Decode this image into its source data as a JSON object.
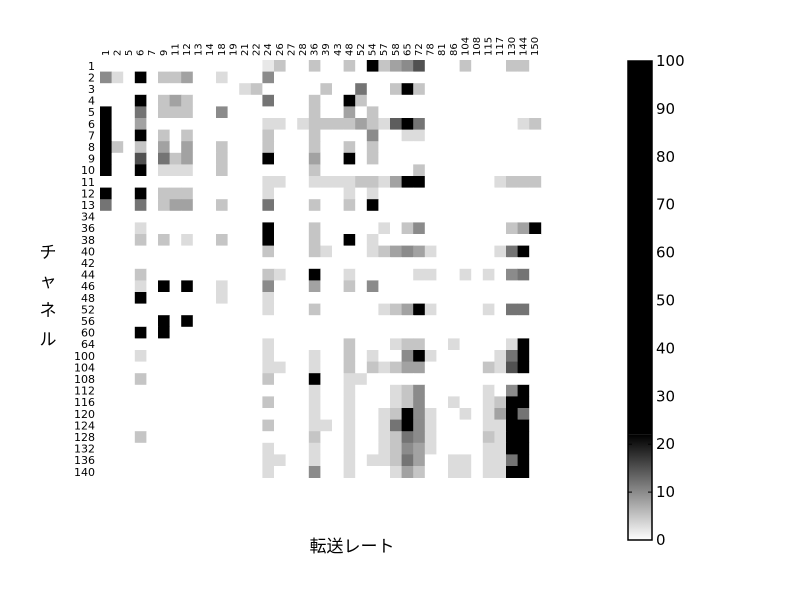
{
  "chart_data": {
    "type": "heatmap",
    "title": "",
    "xlabel": "転送レート",
    "ylabel": "チャネル",
    "x_categories": [
      "1",
      "2",
      "5",
      "6",
      "7",
      "9",
      "11",
      "12",
      "13",
      "14",
      "18",
      "19",
      "21",
      "22",
      "24",
      "26",
      "27",
      "28",
      "36",
      "39",
      "43",
      "48",
      "52",
      "54",
      "57",
      "58",
      "65",
      "72",
      "78",
      "81",
      "86",
      "104",
      "108",
      "115",
      "117",
      "130",
      "144",
      "150"
    ],
    "y_categories": [
      "1",
      "2",
      "3",
      "4",
      "5",
      "6",
      "7",
      "8",
      "9",
      "10",
      "11",
      "12",
      "13",
      "34",
      "36",
      "38",
      "40",
      "42",
      "44",
      "46",
      "48",
      "52",
      "56",
      "60",
      "64",
      "100",
      "104",
      "108",
      "112",
      "116",
      "120",
      "124",
      "128",
      "132",
      "136",
      "140"
    ],
    "value_range": [
      0,
      100
    ],
    "colorbar": {
      "ticks": [
        0,
        10,
        20,
        30,
        40,
        50,
        60,
        70,
        80,
        90,
        100
      ],
      "gradient_max": 22,
      "colors": [
        "#ffffff",
        "#000000"
      ]
    },
    "cells": [
      [
        0,
        0,
        0,
        0,
        0,
        0,
        0,
        0,
        0,
        0,
        0,
        0,
        0,
        0,
        2,
        5,
        0,
        0,
        5,
        0,
        0,
        5,
        0,
        100,
        5,
        8,
        10,
        15,
        0,
        0,
        0,
        5,
        0,
        0,
        0,
        5,
        5,
        0
      ],
      [
        10,
        3,
        0,
        100,
        0,
        5,
        5,
        8,
        0,
        0,
        3,
        0,
        0,
        0,
        10,
        0,
        0,
        0,
        0,
        0,
        0,
        0,
        0,
        0,
        0,
        0,
        0,
        0,
        0,
        0,
        0,
        0,
        0,
        0,
        0,
        0,
        0,
        0
      ],
      [
        0,
        0,
        0,
        0,
        0,
        0,
        0,
        0,
        0,
        0,
        0,
        0,
        3,
        5,
        0,
        0,
        0,
        0,
        0,
        5,
        0,
        0,
        12,
        0,
        0,
        5,
        100,
        5,
        0,
        0,
        0,
        0,
        0,
        0,
        0,
        0,
        0,
        0
      ],
      [
        0,
        0,
        0,
        45,
        0,
        5,
        8,
        5,
        0,
        0,
        0,
        0,
        0,
        0,
        12,
        0,
        0,
        0,
        5,
        0,
        0,
        100,
        5,
        0,
        0,
        0,
        0,
        0,
        0,
        0,
        0,
        0,
        0,
        0,
        0,
        0,
        0,
        0
      ],
      [
        100,
        0,
        0,
        12,
        0,
        5,
        5,
        5,
        0,
        0,
        10,
        0,
        0,
        0,
        0,
        0,
        0,
        0,
        5,
        0,
        0,
        8,
        0,
        5,
        0,
        0,
        0,
        0,
        0,
        0,
        0,
        0,
        0,
        0,
        0,
        0,
        0,
        0
      ],
      [
        100,
        0,
        0,
        8,
        0,
        0,
        0,
        0,
        0,
        0,
        0,
        0,
        0,
        0,
        3,
        3,
        0,
        3,
        5,
        5,
        5,
        5,
        8,
        5,
        3,
        14,
        100,
        12,
        0,
        0,
        0,
        0,
        0,
        0,
        0,
        0,
        3,
        5
      ],
      [
        100,
        0,
        0,
        100,
        0,
        5,
        0,
        5,
        0,
        0,
        0,
        0,
        0,
        0,
        5,
        0,
        0,
        0,
        5,
        0,
        0,
        0,
        0,
        10,
        0,
        0,
        3,
        3,
        0,
        0,
        0,
        0,
        0,
        0,
        0,
        0,
        0,
        0
      ],
      [
        100,
        5,
        0,
        5,
        0,
        8,
        0,
        8,
        0,
        0,
        5,
        0,
        0,
        0,
        5,
        0,
        0,
        0,
        5,
        0,
        0,
        5,
        0,
        5,
        0,
        0,
        0,
        0,
        0,
        0,
        0,
        0,
        0,
        0,
        0,
        0,
        0,
        0
      ],
      [
        100,
        0,
        0,
        15,
        0,
        12,
        5,
        8,
        0,
        0,
        5,
        0,
        0,
        0,
        100,
        0,
        0,
        0,
        8,
        0,
        0,
        60,
        0,
        5,
        0,
        0,
        0,
        0,
        0,
        0,
        0,
        0,
        0,
        0,
        0,
        0,
        0,
        0
      ],
      [
        100,
        0,
        0,
        100,
        0,
        3,
        3,
        3,
        0,
        0,
        5,
        0,
        0,
        0,
        0,
        0,
        0,
        0,
        5,
        0,
        0,
        0,
        0,
        0,
        0,
        0,
        0,
        5,
        0,
        0,
        0,
        0,
        0,
        0,
        0,
        0,
        0,
        0
      ],
      [
        0,
        0,
        0,
        0,
        0,
        0,
        0,
        0,
        0,
        0,
        0,
        0,
        0,
        0,
        3,
        3,
        0,
        0,
        3,
        3,
        3,
        3,
        5,
        5,
        3,
        8,
        100,
        100,
        0,
        0,
        0,
        0,
        0,
        0,
        3,
        5,
        5,
        5
      ],
      [
        100,
        0,
        0,
        100,
        0,
        5,
        5,
        5,
        0,
        0,
        0,
        0,
        0,
        0,
        3,
        0,
        0,
        0,
        0,
        0,
        0,
        3,
        0,
        3,
        0,
        0,
        0,
        0,
        0,
        0,
        0,
        0,
        0,
        0,
        0,
        0,
        0,
        0
      ],
      [
        12,
        0,
        0,
        12,
        0,
        5,
        8,
        8,
        0,
        0,
        5,
        0,
        0,
        0,
        12,
        0,
        0,
        0,
        5,
        0,
        0,
        5,
        0,
        100,
        0,
        0,
        0,
        0,
        0,
        0,
        0,
        0,
        0,
        0,
        0,
        0,
        0,
        0
      ],
      [
        0,
        0,
        0,
        0,
        0,
        0,
        0,
        0,
        0,
        0,
        0,
        0,
        0,
        0,
        0,
        0,
        0,
        0,
        0,
        0,
        0,
        0,
        0,
        0,
        0,
        0,
        0,
        0,
        0,
        0,
        0,
        0,
        0,
        0,
        0,
        0,
        0,
        0
      ],
      [
        0,
        0,
        0,
        3,
        0,
        0,
        0,
        0,
        0,
        0,
        0,
        0,
        0,
        0,
        100,
        0,
        0,
        0,
        5,
        0,
        0,
        0,
        0,
        0,
        3,
        0,
        5,
        10,
        0,
        0,
        0,
        0,
        0,
        0,
        0,
        5,
        8,
        100
      ],
      [
        0,
        0,
        0,
        5,
        0,
        5,
        0,
        3,
        0,
        0,
        5,
        0,
        0,
        0,
        100,
        0,
        0,
        0,
        5,
        0,
        0,
        70,
        0,
        3,
        0,
        0,
        0,
        0,
        0,
        0,
        0,
        0,
        0,
        0,
        0,
        0,
        0,
        0
      ],
      [
        0,
        0,
        0,
        0,
        0,
        0,
        0,
        0,
        0,
        0,
        0,
        0,
        0,
        0,
        5,
        0,
        0,
        0,
        5,
        3,
        0,
        0,
        0,
        3,
        5,
        8,
        10,
        8,
        3,
        0,
        0,
        0,
        0,
        0,
        3,
        12,
        100,
        0
      ],
      [
        0,
        0,
        0,
        0,
        0,
        0,
        0,
        0,
        0,
        0,
        0,
        0,
        0,
        0,
        0,
        0,
        0,
        0,
        0,
        0,
        0,
        0,
        0,
        0,
        0,
        0,
        0,
        0,
        0,
        0,
        0,
        0,
        0,
        0,
        0,
        0,
        0,
        0
      ],
      [
        0,
        0,
        0,
        5,
        0,
        0,
        0,
        0,
        0,
        0,
        0,
        0,
        0,
        0,
        5,
        3,
        0,
        0,
        100,
        0,
        0,
        3,
        0,
        0,
        0,
        0,
        0,
        3,
        3,
        0,
        0,
        3,
        0,
        3,
        0,
        10,
        12,
        0
      ],
      [
        0,
        0,
        0,
        3,
        0,
        100,
        0,
        100,
        0,
        0,
        3,
        0,
        0,
        0,
        10,
        0,
        0,
        0,
        8,
        0,
        0,
        5,
        0,
        10,
        0,
        0,
        0,
        0,
        0,
        0,
        0,
        0,
        0,
        0,
        0,
        0,
        0,
        0
      ],
      [
        0,
        0,
        0,
        100,
        0,
        0,
        0,
        0,
        0,
        0,
        3,
        0,
        0,
        0,
        3,
        0,
        0,
        0,
        0,
        0,
        0,
        0,
        0,
        0,
        0,
        0,
        0,
        0,
        0,
        0,
        0,
        0,
        0,
        0,
        0,
        0,
        0,
        0
      ],
      [
        0,
        0,
        0,
        0,
        0,
        0,
        0,
        0,
        0,
        0,
        0,
        0,
        0,
        0,
        3,
        0,
        0,
        0,
        5,
        0,
        0,
        0,
        0,
        0,
        3,
        5,
        8,
        100,
        3,
        0,
        0,
        0,
        0,
        3,
        0,
        12,
        12,
        0
      ],
      [
        0,
        0,
        0,
        0,
        0,
        100,
        0,
        100,
        0,
        0,
        0,
        0,
        0,
        0,
        0,
        0,
        0,
        0,
        0,
        0,
        0,
        0,
        0,
        0,
        0,
        0,
        0,
        0,
        0,
        0,
        0,
        0,
        0,
        0,
        0,
        0,
        0,
        0
      ],
      [
        0,
        0,
        0,
        100,
        0,
        100,
        0,
        0,
        0,
        0,
        0,
        0,
        0,
        0,
        0,
        0,
        0,
        0,
        0,
        0,
        0,
        0,
        0,
        0,
        0,
        0,
        0,
        0,
        0,
        0,
        0,
        0,
        0,
        0,
        0,
        0,
        0,
        0
      ],
      [
        0,
        0,
        0,
        0,
        0,
        0,
        0,
        0,
        0,
        0,
        0,
        0,
        0,
        0,
        3,
        0,
        0,
        0,
        0,
        0,
        0,
        5,
        0,
        0,
        0,
        3,
        5,
        5,
        0,
        0,
        3,
        0,
        0,
        0,
        0,
        3,
        100,
        0
      ],
      [
        0,
        0,
        0,
        3,
        0,
        0,
        0,
        0,
        0,
        0,
        0,
        0,
        0,
        0,
        3,
        0,
        0,
        0,
        3,
        0,
        0,
        5,
        0,
        3,
        0,
        0,
        10,
        100,
        3,
        0,
        0,
        0,
        0,
        0,
        3,
        12,
        100,
        0
      ],
      [
        0,
        0,
        0,
        0,
        0,
        0,
        0,
        0,
        0,
        0,
        0,
        0,
        0,
        0,
        3,
        3,
        0,
        0,
        3,
        0,
        0,
        5,
        0,
        5,
        3,
        5,
        8,
        8,
        0,
        0,
        0,
        0,
        0,
        5,
        3,
        15,
        100,
        0
      ],
      [
        0,
        0,
        0,
        5,
        0,
        0,
        0,
        0,
        0,
        0,
        0,
        0,
        0,
        0,
        5,
        0,
        0,
        0,
        100,
        0,
        0,
        3,
        3,
        0,
        0,
        0,
        0,
        0,
        0,
        0,
        0,
        0,
        0,
        0,
        0,
        0,
        0,
        0
      ],
      [
        0,
        0,
        0,
        0,
        0,
        0,
        0,
        0,
        0,
        0,
        0,
        0,
        0,
        0,
        0,
        0,
        0,
        0,
        3,
        0,
        0,
        3,
        0,
        0,
        0,
        3,
        5,
        10,
        0,
        0,
        0,
        0,
        0,
        3,
        0,
        10,
        100,
        0
      ],
      [
        0,
        0,
        0,
        0,
        0,
        0,
        0,
        0,
        0,
        0,
        0,
        0,
        0,
        0,
        5,
        0,
        0,
        0,
        3,
        0,
        0,
        3,
        0,
        0,
        0,
        3,
        5,
        10,
        0,
        0,
        3,
        0,
        0,
        3,
        5,
        100,
        100,
        0
      ],
      [
        0,
        0,
        0,
        0,
        0,
        0,
        0,
        0,
        0,
        0,
        0,
        0,
        0,
        0,
        0,
        0,
        0,
        0,
        3,
        0,
        0,
        3,
        0,
        0,
        3,
        5,
        100,
        10,
        3,
        0,
        0,
        3,
        0,
        3,
        8,
        100,
        12,
        0
      ],
      [
        0,
        0,
        0,
        0,
        0,
        0,
        0,
        0,
        0,
        0,
        0,
        0,
        0,
        0,
        5,
        0,
        0,
        0,
        3,
        3,
        0,
        3,
        0,
        0,
        3,
        12,
        30,
        10,
        3,
        0,
        0,
        0,
        0,
        3,
        3,
        100,
        100,
        0
      ],
      [
        0,
        0,
        0,
        5,
        0,
        0,
        0,
        0,
        0,
        0,
        0,
        0,
        0,
        0,
        0,
        0,
        0,
        0,
        5,
        0,
        0,
        3,
        0,
        0,
        3,
        5,
        12,
        10,
        3,
        0,
        0,
        0,
        0,
        5,
        3,
        40,
        100,
        0
      ],
      [
        0,
        0,
        0,
        0,
        0,
        0,
        0,
        0,
        0,
        0,
        0,
        0,
        0,
        0,
        3,
        0,
        0,
        0,
        3,
        0,
        0,
        3,
        0,
        0,
        3,
        5,
        10,
        8,
        3,
        0,
        0,
        0,
        0,
        3,
        3,
        100,
        100,
        0
      ],
      [
        0,
        0,
        0,
        0,
        0,
        0,
        0,
        0,
        0,
        0,
        0,
        0,
        0,
        0,
        3,
        3,
        0,
        0,
        3,
        0,
        0,
        3,
        0,
        3,
        3,
        5,
        12,
        8,
        0,
        0,
        3,
        3,
        0,
        3,
        3,
        12,
        100,
        0
      ],
      [
        0,
        0,
        0,
        0,
        0,
        0,
        0,
        0,
        0,
        0,
        0,
        0,
        0,
        0,
        3,
        0,
        0,
        0,
        10,
        0,
        0,
        3,
        0,
        0,
        0,
        3,
        8,
        5,
        0,
        0,
        3,
        3,
        0,
        3,
        3,
        100,
        100,
        0
      ]
    ]
  }
}
